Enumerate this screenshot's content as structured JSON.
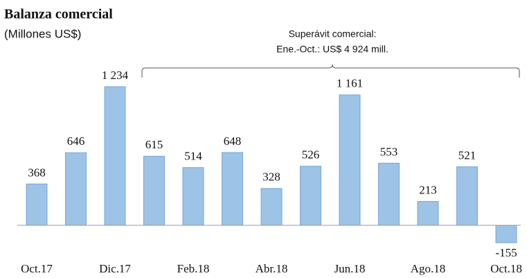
{
  "chart_data": {
    "type": "bar",
    "title": "Balanza comercial",
    "subtitle": "(Millones US$)",
    "annotation": [
      "Superávit comercial:",
      "Ene.-Oct.: US$ 4 924 mill."
    ],
    "categories": [
      "Oct.17",
      null,
      "Dic.17",
      null,
      "Feb.18",
      null,
      "Abr.18",
      null,
      "Jun.18",
      null,
      "Ago.18",
      null,
      "Oct.18"
    ],
    "values": [
      368,
      646,
      1234,
      615,
      514,
      648,
      328,
      526,
      1161,
      553,
      213,
      521,
      -155
    ],
    "value_labels": [
      "368",
      "646",
      "1 234",
      "615",
      "514",
      "648",
      "328",
      "526",
      "1 161",
      "553",
      "213",
      "521",
      "-155"
    ],
    "color": "#9dc3e6"
  }
}
